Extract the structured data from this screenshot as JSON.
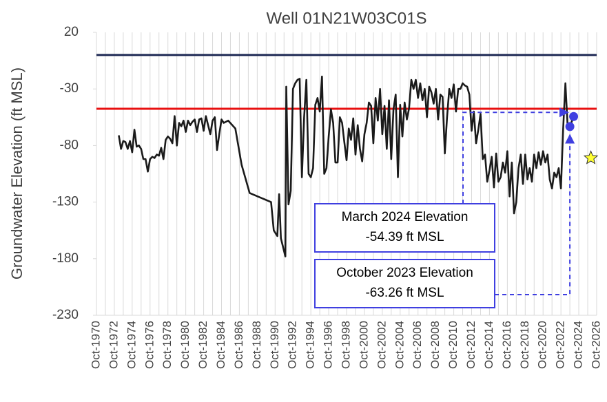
{
  "chart_data": {
    "type": "line",
    "title": "Well 01N21W03C01S",
    "y_label": "Groundwater Elevation (ft MSL)",
    "ylim": [
      -230,
      20
    ],
    "yticks": [
      20,
      -30,
      -80,
      -130,
      -180,
      -230
    ],
    "xlim": [
      1970.75,
      2026.75
    ],
    "xticks": [
      {
        "value": 1970.75,
        "label": "Oct-1970"
      },
      {
        "value": 1972.75,
        "label": "Oct-1972"
      },
      {
        "value": 1974.75,
        "label": "Oct-1974"
      },
      {
        "value": 1976.75,
        "label": "Oct-1976"
      },
      {
        "value": 1978.75,
        "label": "Oct-1978"
      },
      {
        "value": 1980.75,
        "label": "Oct-1980"
      },
      {
        "value": 1982.75,
        "label": "Oct-1982"
      },
      {
        "value": 1984.75,
        "label": "Oct-1984"
      },
      {
        "value": 1986.75,
        "label": "Oct-1986"
      },
      {
        "value": 1988.75,
        "label": "Oct-1988"
      },
      {
        "value": 1990.75,
        "label": "Oct-1990"
      },
      {
        "value": 1992.75,
        "label": "Oct-1992"
      },
      {
        "value": 1994.75,
        "label": "Oct-1994"
      },
      {
        "value": 1996.75,
        "label": "Oct-1996"
      },
      {
        "value": 1998.75,
        "label": "Oct-1998"
      },
      {
        "value": 2000.75,
        "label": "Oct-2000"
      },
      {
        "value": 2002.75,
        "label": "Oct-2002"
      },
      {
        "value": 2004.75,
        "label": "Oct-2004"
      },
      {
        "value": 2006.75,
        "label": "Oct-2006"
      },
      {
        "value": 2008.75,
        "label": "Oct-2008"
      },
      {
        "value": 2010.75,
        "label": "Oct-2010"
      },
      {
        "value": 2012.75,
        "label": "Oct-2012"
      },
      {
        "value": 2014.75,
        "label": "Oct-2014"
      },
      {
        "value": 2016.75,
        "label": "Oct-2016"
      },
      {
        "value": 2018.75,
        "label": "Oct-2018"
      },
      {
        "value": 2020.75,
        "label": "Oct-2020"
      },
      {
        "value": 2022.75,
        "label": "Oct-2022"
      },
      {
        "value": 2024.75,
        "label": "Oct-2024"
      },
      {
        "value": 2026.75,
        "label": "Oct-2026"
      }
    ],
    "x_minor_ticks": [
      1971.75,
      1973.75,
      1975.75,
      1977.75,
      1979.75,
      1981.75,
      1983.75,
      1985.75,
      1987.75,
      1989.75,
      1991.75,
      1993.75,
      1995.75,
      1997.75,
      1999.75,
      2001.75,
      2003.75,
      2005.75,
      2007.75,
      2009.75,
      2011.75,
      2013.75,
      2015.75,
      2017.75,
      2019.75,
      2021.75,
      2023.75,
      2025.75
    ],
    "grid": "x",
    "color": "#1a1a1a",
    "x": [
      1973.25,
      1973.5,
      1973.75,
      1974,
      1974.25,
      1974.5,
      1974.75,
      1975,
      1975.25,
      1975.5,
      1975.75,
      1976,
      1976.25,
      1976.5,
      1976.75,
      1977,
      1977.25,
      1977.5,
      1977.75,
      1978,
      1978.25,
      1978.5,
      1978.75,
      1979,
      1979.25,
      1979.5,
      1979.75,
      1980,
      1980.25,
      1980.5,
      1980.75,
      1981,
      1981.25,
      1981.5,
      1981.75,
      1982,
      1982.25,
      1982.5,
      1982.75,
      1983,
      1983.25,
      1983.5,
      1983.75,
      1984,
      1984.25,
      1984.5,
      1984.75,
      1985,
      1985.5,
      1986.3,
      1987,
      1987.9,
      1990.3,
      1990.6,
      1991,
      1991.2,
      1991.4,
      1991.9,
      1992,
      1992.25,
      1992.5,
      1992.75,
      1993,
      1993.25,
      1993.5,
      1993.75,
      1994,
      1994.25,
      1994.5,
      1994.75,
      1995,
      1995.25,
      1995.5,
      1995.75,
      1996,
      1996.25,
      1996.5,
      1996.75,
      1997,
      1997.25,
      1997.5,
      1997.75,
      1998,
      1998.25,
      1998.5,
      1998.75,
      1999,
      1999.25,
      1999.5,
      1999.75,
      2000,
      2000.25,
      2000.5,
      2000.75,
      2001,
      2001.25,
      2001.5,
      2001.75,
      2002,
      2002.25,
      2002.5,
      2002.75,
      2003,
      2003.25,
      2003.5,
      2003.75,
      2004,
      2004.25,
      2004.5,
      2004.75,
      2005,
      2005.25,
      2005.5,
      2005.75,
      2006,
      2006.25,
      2006.5,
      2006.75,
      2007,
      2007.25,
      2007.5,
      2007.75,
      2008,
      2008.25,
      2008.5,
      2008.75,
      2009,
      2009.25,
      2009.5,
      2009.75,
      2010,
      2010.25,
      2010.5,
      2010.75,
      2011,
      2011.25,
      2011.5,
      2011.75,
      2012,
      2012.25,
      2012.5,
      2012.75,
      2013,
      2013.25,
      2013.5,
      2013.75,
      2014,
      2014.25,
      2014.5,
      2014.75,
      2015,
      2015.25,
      2015.5,
      2015.75,
      2016,
      2016.25,
      2016.5,
      2016.75,
      2017,
      2017.25,
      2017.5,
      2017.75,
      2018,
      2018.25,
      2018.5,
      2018.75,
      2019,
      2019.25,
      2019.5,
      2019.75,
      2020,
      2020.25,
      2020.5,
      2020.75,
      2021,
      2021.25,
      2021.5,
      2021.75,
      2022,
      2022.25,
      2022.5,
      2022.75,
      2023,
      2023.25,
      2023.5,
      2023.75,
      2024.17
    ],
    "values": [
      -71,
      -83,
      -76,
      -77,
      -83,
      -76,
      -86,
      -66,
      -81,
      -80,
      -83,
      -92,
      -92,
      -103,
      -92,
      -90,
      -91,
      -88,
      -89,
      -82,
      -92,
      -75,
      -72,
      -74,
      -78,
      -54,
      -80,
      -60,
      -63,
      -58,
      -68,
      -58,
      -62,
      -59,
      -57,
      -68,
      -57,
      -56,
      -67,
      -54,
      -62,
      -70,
      -58,
      -55,
      -84,
      -70,
      -57,
      -60,
      -58,
      -65,
      -97,
      -122,
      -130,
      -155,
      -160,
      -123,
      -162,
      -178,
      -28,
      -132,
      -120,
      -30,
      -25,
      -22,
      -21,
      -108,
      -55,
      -22,
      -105,
      -108,
      -100,
      -44,
      -38,
      -50,
      -19,
      -105,
      -100,
      -72,
      -48,
      -60,
      -95,
      -95,
      -55,
      -60,
      -77,
      -93,
      -65,
      -75,
      -56,
      -88,
      -62,
      -83,
      -94,
      -70,
      -60,
      -42,
      -45,
      -78,
      -38,
      -58,
      -30,
      -70,
      -45,
      -83,
      -40,
      -92,
      -48,
      -35,
      -108,
      -44,
      -72,
      -42,
      -57,
      -47,
      -22,
      -30,
      -22,
      -38,
      -25,
      -40,
      -30,
      -55,
      -28,
      -33,
      -43,
      -30,
      -57,
      -35,
      -37,
      -87,
      -55,
      -30,
      -38,
      -26,
      -50,
      -30,
      -30,
      -25,
      -27,
      -28,
      -35,
      -67,
      -50,
      -78,
      -66,
      -52,
      -92,
      -88,
      -112,
      -102,
      -90,
      -117,
      -87,
      -112,
      -108,
      -95,
      -104,
      -85,
      -125,
      -95,
      -140,
      -130,
      -100,
      -88,
      -114,
      -88,
      -110,
      -100,
      -112,
      -88,
      -100,
      -86,
      -97,
      -85,
      -95,
      -88,
      -110,
      -118,
      -104,
      -108,
      -100,
      -118,
      -65,
      -25,
      -63,
      -63.26,
      -54.39
    ],
    "reference_lines": [
      {
        "value": 0,
        "color": "#1f2a55"
      },
      {
        "value": -47.5,
        "color": "#e81010"
      }
    ],
    "annotations": [
      {
        "lines": [
          "March 2024 Elevation",
          "-54.39 ft MSL"
        ],
        "x": 2024.17,
        "y": -54.39,
        "color": "#3f3fe0"
      },
      {
        "lines": [
          "October 2023 Elevation",
          "-63.26 ft MSL"
        ],
        "x": 2023.75,
        "y": -63.26,
        "color": "#3f3fe0"
      }
    ],
    "star": {
      "x": 2026.1,
      "y": -91,
      "color": "#ffff33"
    }
  }
}
